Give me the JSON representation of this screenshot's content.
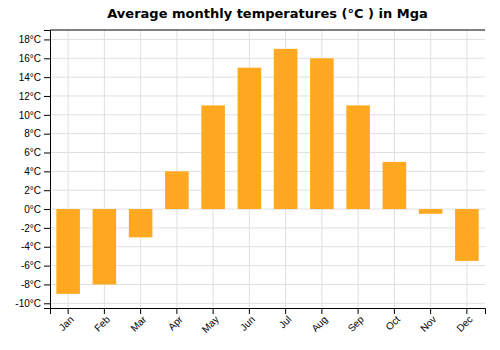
{
  "chart_data": {
    "type": "bar",
    "title": "Average monthly temperatures (°C ) in Mga",
    "categories": [
      "Jan",
      "Feb",
      "Mar",
      "Apr",
      "May",
      "Jun",
      "Jul",
      "Aug",
      "Sep",
      "Oct",
      "Nov",
      "Dec"
    ],
    "values": [
      -9,
      -8,
      -3,
      4,
      11,
      15,
      17,
      16,
      11,
      5,
      -0.5,
      -5.5
    ],
    "color": "#FFA820",
    "ylim": [
      -10.5,
      19
    ],
    "yticks": [
      {
        "value": -10,
        "label": "-10°C"
      },
      {
        "value": -8,
        "label": "-8°C"
      },
      {
        "value": -6,
        "label": "-6°C"
      },
      {
        "value": -4,
        "label": "-4°C"
      },
      {
        "value": -2,
        "label": "-2°C"
      },
      {
        "value": 0,
        "label": "0°C"
      },
      {
        "value": 2,
        "label": "2°C"
      },
      {
        "value": 4,
        "label": "4°C"
      },
      {
        "value": 6,
        "label": "6°C"
      },
      {
        "value": 8,
        "label": "8°C"
      },
      {
        "value": 10,
        "label": "10°C"
      },
      {
        "value": 12,
        "label": "12°C"
      },
      {
        "value": 14,
        "label": "14°C"
      },
      {
        "value": 16,
        "label": "16°C"
      },
      {
        "value": 18,
        "label": "18°C"
      }
    ],
    "grid": true
  }
}
